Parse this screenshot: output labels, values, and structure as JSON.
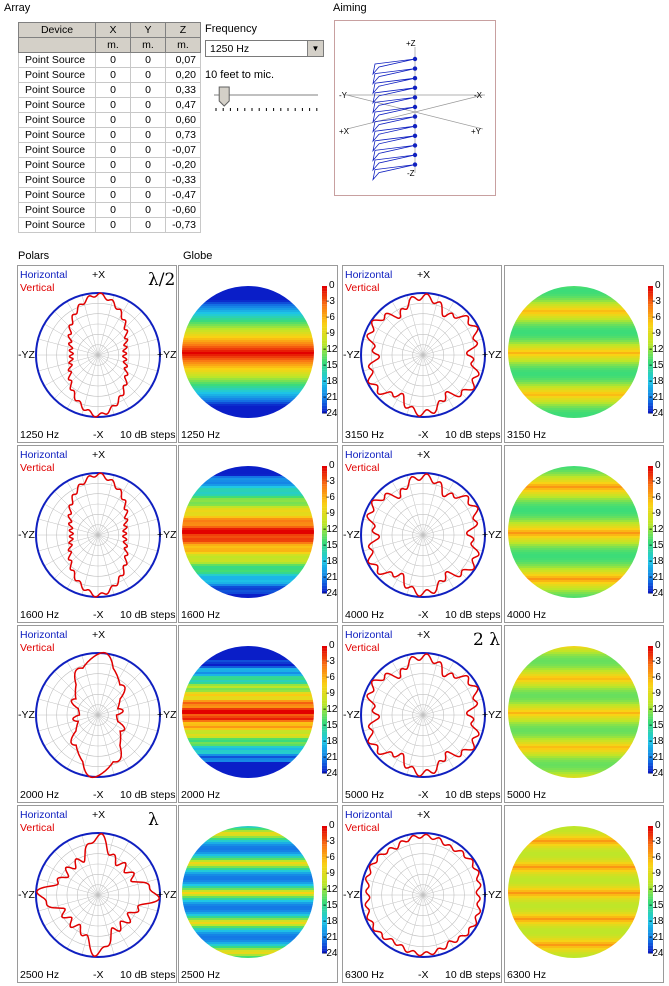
{
  "array": {
    "title": "Array",
    "headers": [
      "Device",
      "X",
      "Y",
      "Z"
    ],
    "units": [
      "",
      "m.",
      "m.",
      "m."
    ],
    "rows": [
      [
        "Point Source",
        "0",
        "0",
        "0,07"
      ],
      [
        "Point Source",
        "0",
        "0",
        "0,20"
      ],
      [
        "Point Source",
        "0",
        "0",
        "0,33"
      ],
      [
        "Point Source",
        "0",
        "0",
        "0,47"
      ],
      [
        "Point Source",
        "0",
        "0",
        "0,60"
      ],
      [
        "Point Source",
        "0",
        "0",
        "0,73"
      ],
      [
        "Point Source",
        "0",
        "0",
        "-0,07"
      ],
      [
        "Point Source",
        "0",
        "0",
        "-0,20"
      ],
      [
        "Point Source",
        "0",
        "0",
        "-0,33"
      ],
      [
        "Point Source",
        "0",
        "0",
        "-0,47"
      ],
      [
        "Point Source",
        "0",
        "0",
        "-0,60"
      ],
      [
        "Point Source",
        "0",
        "0",
        "-0,73"
      ]
    ]
  },
  "frequency": {
    "label": "Frequency",
    "selected": "1250 Hz",
    "distance_label": "10 feet to mic.",
    "slider_level": 0.05
  },
  "aiming": {
    "title": "Aiming",
    "axes": {
      "pz": "+Z",
      "nz": "-Z",
      "ny": "-Y",
      "px_top": "-X",
      "px": "+X",
      "py": "+Y"
    }
  },
  "sections": {
    "polars": "Polars",
    "globe": "Globe"
  },
  "legend": {
    "horizontal": "Horizontal",
    "vertical": "Vertical"
  },
  "polar_labels": {
    "top": "+X",
    "bottom": "-X",
    "left": "-YZ",
    "right": "+YZ",
    "steps": "10 dB steps"
  },
  "colorbar_ticks": [
    "0",
    "-3",
    "-6",
    "-9",
    "-12",
    "-15",
    "-18",
    "-21",
    "-24"
  ],
  "plots": [
    {
      "freq": "1250 Hz",
      "annotation": "λ/2",
      "vlobe": "narrow"
    },
    {
      "freq": "3150 Hz",
      "annotation": "",
      "vlobe": "multi"
    },
    {
      "freq": "1600 Hz",
      "annotation": "",
      "vlobe": "narrow"
    },
    {
      "freq": "4000 Hz",
      "annotation": "",
      "vlobe": "multi"
    },
    {
      "freq": "2000 Hz",
      "annotation": "",
      "vlobe": "spiky"
    },
    {
      "freq": "5000 Hz",
      "annotation": "2 λ",
      "vlobe": "multi"
    },
    {
      "freq": "2500 Hz",
      "annotation": "λ",
      "vlobe": "star"
    },
    {
      "freq": "6300 Hz",
      "annotation": "",
      "vlobe": "round"
    }
  ],
  "colors": {
    "horizontal": "#1020c0",
    "vertical": "#e00000",
    "grid": "#c0c0c0"
  }
}
